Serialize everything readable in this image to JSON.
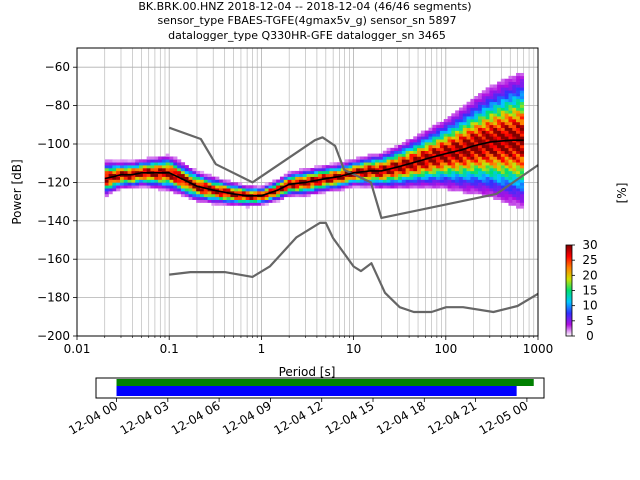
{
  "title_lines": [
    "BK.BRK.00.HNZ   2018-12-04 -- 2018-12-04  (46/46 segments)",
    "sensor_type FBAES-TGFE(4gmax5v_g) sensor_sn 5897",
    "datalogger_type Q330HR-GFE datalogger_sn 3465"
  ],
  "chart_data": [
    {
      "type": "heatmap",
      "name": "ppsd",
      "xlabel": "Period [s]",
      "ylabel": "Power [dB]",
      "x_scale": "log",
      "xlim": [
        0.01,
        1000
      ],
      "ylim": [
        -200,
        -50
      ],
      "x_ticks": [
        0.01,
        0.1,
        1,
        10,
        100,
        1000
      ],
      "x_tick_labels": [
        "0.01",
        "0.1",
        "1",
        "10",
        "100",
        "1000"
      ],
      "y_ticks": [
        -200,
        -180,
        -160,
        -140,
        -120,
        -100,
        -80,
        -60
      ],
      "y_tick_labels": [
        "−200",
        "−180",
        "−160",
        "−140",
        "−120",
        "−100",
        "−80",
        "−60"
      ],
      "grid": true,
      "period_range": [
        0.02,
        700
      ],
      "mode_curve": [
        [
          0.02,
          -118
        ],
        [
          0.025,
          -117
        ],
        [
          0.03,
          -116
        ],
        [
          0.04,
          -116
        ],
        [
          0.05,
          -115
        ],
        [
          0.07,
          -115
        ],
        [
          0.1,
          -115
        ],
        [
          0.15,
          -119
        ],
        [
          0.2,
          -122
        ],
        [
          0.3,
          -124
        ],
        [
          0.5,
          -126
        ],
        [
          0.7,
          -127
        ],
        [
          1,
          -127
        ],
        [
          1.5,
          -124
        ],
        [
          2,
          -121
        ],
        [
          3,
          -120
        ],
        [
          5,
          -118
        ],
        [
          7,
          -117
        ],
        [
          10,
          -115
        ],
        [
          15,
          -114
        ],
        [
          20,
          -114
        ],
        [
          30,
          -112
        ],
        [
          50,
          -109
        ],
        [
          70,
          -107
        ],
        [
          100,
          -105
        ],
        [
          150,
          -103
        ],
        [
          200,
          -101
        ],
        [
          300,
          -99
        ],
        [
          500,
          -98
        ],
        [
          700,
          -98
        ]
      ],
      "spread_curve": [
        [
          0.02,
          4
        ],
        [
          0.03,
          3
        ],
        [
          0.05,
          3
        ],
        [
          0.1,
          4
        ],
        [
          0.3,
          3
        ],
        [
          1,
          2
        ],
        [
          3,
          3
        ],
        [
          10,
          3
        ],
        [
          20,
          4
        ],
        [
          50,
          6
        ],
        [
          100,
          8
        ],
        [
          200,
          11
        ],
        [
          400,
          14
        ],
        [
          700,
          16
        ]
      ],
      "noise_models": [
        {
          "name": "NHNM",
          "points": [
            [
              0.1,
              -91.5
            ],
            [
              0.22,
              -97.4
            ],
            [
              0.32,
              -110.5
            ],
            [
              0.8,
              -120
            ],
            [
              3.8,
              -98
            ],
            [
              4.6,
              -96.5
            ],
            [
              6.3,
              -101
            ],
            [
              7.9,
              -113.5
            ],
            [
              15.4,
              -120
            ],
            [
              20,
              -138.5
            ],
            [
              354.8,
              -126
            ],
            [
              1000,
              -111
            ]
          ]
        },
        {
          "name": "NLNM",
          "points": [
            [
              0.1,
              -168
            ],
            [
              0.17,
              -166.7
            ],
            [
              0.4,
              -166.7
            ],
            [
              0.8,
              -169.2
            ],
            [
              1.24,
              -163.7
            ],
            [
              2.4,
              -148.6
            ],
            [
              4.3,
              -141.1
            ],
            [
              5,
              -141.1
            ],
            [
              6,
              -149
            ],
            [
              10,
              -163.8
            ],
            [
              12,
              -166.2
            ],
            [
              15.6,
              -162.1
            ],
            [
              21.9,
              -177.5
            ],
            [
              31.6,
              -185
            ],
            [
              45,
              -187.5
            ],
            [
              70,
              -187.5
            ],
            [
              101,
              -185
            ],
            [
              154,
              -185
            ],
            [
              328,
              -187.5
            ],
            [
              600,
              -184.4
            ],
            [
              1000,
              -178
            ]
          ]
        }
      ]
    },
    {
      "type": "colorbar",
      "name": "percent-colorbar",
      "label": "[%]",
      "range": [
        0,
        30
      ],
      "ticks": [
        0,
        5,
        10,
        15,
        20,
        25,
        30
      ],
      "tick_labels": [
        "0",
        "5",
        "10",
        "15",
        "20",
        "25",
        "30"
      ],
      "colors": [
        "#ffffff",
        "#b010e0",
        "#3030ff",
        "#00c8ff",
        "#00e070",
        "#d0e000",
        "#ff8000",
        "#ff0000",
        "#800000"
      ]
    },
    {
      "type": "timeline",
      "name": "data-coverage",
      "x_tick_labels": [
        "12-04 00",
        "12-04 03",
        "12-04 06",
        "12-04 09",
        "12-04 12",
        "12-04 15",
        "12-04 18",
        "12-04 21",
        "12-05 00"
      ],
      "x_ticks_hours": [
        0,
        3,
        6,
        9,
        12,
        15,
        18,
        21,
        24
      ],
      "xlim_hours": [
        -1.2,
        25
      ],
      "bars": [
        {
          "name": "data-available",
          "start_hour": 0,
          "end_hour": 24.4,
          "color": "#008000"
        },
        {
          "name": "data-used",
          "start_hour": 0,
          "end_hour": 23.4,
          "color": "#0000ff"
        }
      ]
    }
  ]
}
